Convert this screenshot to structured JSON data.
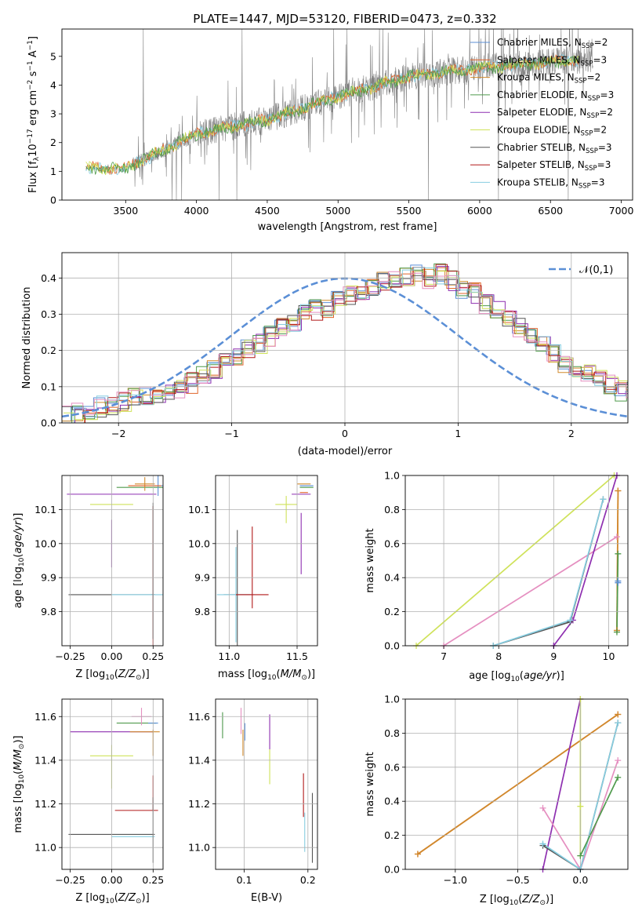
{
  "title": "PLATE=1447, MJD=53120, FIBERID=0473, z=0.332",
  "colors": {
    "Chabrier MILES": "#5b8fd6",
    "Salpeter MILES": "#e0652a",
    "Kroupa MILES": "#d08a2c",
    "Chabrier ELODIE": "#4f9a4c",
    "Salpeter ELODIE": "#8e2fb0",
    "Kroupa ELODIE": "#cfe25a",
    "Chabrier STELIB": "#555555",
    "Salpeter STELIB": "#b01818",
    "Kroupa STELIB": "#86cde0",
    "spectrum": "#808080",
    "normal": "#5b8fd6",
    "pink": "#e58fc0"
  },
  "chart_data": [
    {
      "id": "spectrum",
      "type": "line",
      "xlabel": "wavelength [Angstrom, rest frame]",
      "ylabel_parts": [
        "Flux [f",
        "λ",
        "10",
        "−17",
        " erg cm",
        "−2",
        " s",
        "−1",
        " A",
        "−1",
        "]"
      ],
      "xlim": [
        3050,
        7080
      ],
      "ylim": [
        0,
        5.95
      ],
      "xticks": [
        "3500",
        "4000",
        "4500",
        "5000",
        "5500",
        "6000",
        "6500",
        "7000"
      ],
      "yticks": [
        "0",
        "1",
        "2",
        "3",
        "4",
        "5"
      ],
      "data_trend": {
        "x": [
          3220,
          3500,
          4000,
          4500,
          5000,
          5500,
          6000,
          6500,
          6800
        ],
        "flux": [
          1.1,
          1.1,
          2.3,
          2.8,
          3.6,
          4.3,
          4.6,
          4.8,
          4.9
        ]
      },
      "legend_position": "upper right",
      "legend": [
        {
          "name": "Chabrier MILES",
          "nssp": "2"
        },
        {
          "name": "Salpeter MILES",
          "nssp": "3"
        },
        {
          "name": "Kroupa MILES",
          "nssp": "2"
        },
        {
          "name": "Chabrier ELODIE",
          "nssp": "3"
        },
        {
          "name": "Salpeter ELODIE",
          "nssp": "2"
        },
        {
          "name": "Kroupa ELODIE",
          "nssp": "2"
        },
        {
          "name": "Chabrier STELIB",
          "nssp": "3"
        },
        {
          "name": "Salpeter STELIB",
          "nssp": "3"
        },
        {
          "name": "Kroupa STELIB",
          "nssp": "3"
        }
      ],
      "legend_subscript": "SSP"
    },
    {
      "id": "residuals",
      "type": "bar",
      "subtype": "step-histogram",
      "xlabel": "(data-model)/error",
      "ylabel": "Normed distribution",
      "xlim": [
        -2.5,
        2.5
      ],
      "ylim": [
        0,
        0.47
      ],
      "xticks": [
        "−2",
        "−1",
        "0",
        "1",
        "2"
      ],
      "yticks": [
        "0.0",
        "0.1",
        "0.2",
        "0.3",
        "0.4"
      ],
      "bin_width": 0.1,
      "base_counts": [
        0.02,
        0.025,
        0.035,
        0.045,
        0.05,
        0.06,
        0.068,
        0.078,
        0.085,
        0.09,
        0.095,
        0.11,
        0.13,
        0.15,
        0.165,
        0.18,
        0.2,
        0.22,
        0.24,
        0.26,
        0.28,
        0.3,
        0.31,
        0.32,
        0.34,
        0.35,
        0.36,
        0.38,
        0.39,
        0.39,
        0.4,
        0.41,
        0.4,
        0.41,
        0.39,
        0.37,
        0.36,
        0.33,
        0.31,
        0.28,
        0.26,
        0.24,
        0.21,
        0.19,
        0.16,
        0.15,
        0.14,
        0.12,
        0.11,
        0.09,
        0.085,
        0.075,
        0.065,
        0.06,
        0.055,
        0.05,
        0.045,
        0.04,
        0.035,
        0.03
      ],
      "legend": "𝒩(0,1)",
      "legend_position": "upper right"
    },
    {
      "id": "age-vs-Z",
      "type": "scatter",
      "subtype": "errorbar",
      "xlabel": "Z [log10(Z/Z⊙)]",
      "ylabel": "age  [log10(age/yr)]",
      "xlim": [
        -0.3,
        0.31
      ],
      "ylim": [
        9.7,
        10.2
      ],
      "xticks": [
        "−0.25",
        "0.00",
        "0.25"
      ],
      "yticks": [
        "9.8",
        "9.9",
        "10.0",
        "10.1"
      ],
      "points": [
        {
          "model": "Salpeter ELODIE",
          "x": 0.0,
          "y": 10.145,
          "xerr": 0.27,
          "yerr": 0.0
        },
        {
          "model": "Kroupa ELODIE",
          "x": 0.0,
          "y": 10.115,
          "xerr": 0.13,
          "yerr": 0.0
        },
        {
          "model": "Chabrier ELODIE",
          "x": 0.25,
          "y": 10.165,
          "xerr": 0.22,
          "yerr": 0.0
        },
        {
          "model": "Kroupa MILES",
          "x": 0.2,
          "y": 10.175,
          "xerr": 0.06,
          "yerr": 0.02
        },
        {
          "model": "Chabrier MILES",
          "x": 0.28,
          "y": 10.17,
          "xerr": 0.03,
          "yerr": 0.03
        },
        {
          "model": "Salpeter STELIB",
          "x": 0.25,
          "y": 9.85,
          "xerr": 0.01,
          "yerr": 0.26
        },
        {
          "model": "Chabrier STELIB",
          "x": 0.0,
          "y": 9.85,
          "xerr": 0.26,
          "yerr": 0.0
        },
        {
          "model": "Kroupa STELIB",
          "x": 0.25,
          "y": 9.85,
          "xerr": 0.25,
          "yerr": 0.0
        },
        {
          "model": "Salpeter ELODIE",
          "x": 0.0,
          "y": 10.0,
          "xerr": 0.0,
          "yerr": 0.07
        },
        {
          "model": "Chabrier STELIB",
          "x": 0.25,
          "y": 9.92,
          "xerr": 0.0,
          "yerr": 0.2
        },
        {
          "model": "Salpeter MILES",
          "x": 0.2,
          "y": 10.17,
          "xerr": 0.1,
          "yerr": 0.0
        }
      ]
    },
    {
      "id": "age-vs-mass",
      "type": "scatter",
      "subtype": "errorbar",
      "xlabel": "mass [log10(M/M⊙)]",
      "ylabel": "",
      "xlim": [
        10.9,
        11.65
      ],
      "ylim": [
        9.7,
        10.2
      ],
      "xticks": [
        "11.0",
        "11.5"
      ],
      "yticks": [
        "9.8",
        "9.9",
        "10.0",
        "10.1"
      ],
      "points": [
        {
          "model": "Salpeter ELODIE",
          "x": 11.53,
          "y": 10.145,
          "xerr": 0.07,
          "yerr": 0.0
        },
        {
          "model": "Kroupa ELODIE",
          "x": 11.42,
          "y": 10.115,
          "xerr": 0.08,
          "yerr": 0.0
        },
        {
          "model": "Chabrier ELODIE",
          "x": 11.57,
          "y": 10.165,
          "xerr": 0.05,
          "yerr": 0.0
        },
        {
          "model": "Kroupa MILES",
          "x": 11.55,
          "y": 10.175,
          "xerr": 0.05,
          "yerr": 0.0
        },
        {
          "model": "Chabrier MILES",
          "x": 11.57,
          "y": 10.17,
          "xerr": 0.05,
          "yerr": 0.0
        },
        {
          "model": "Salpeter MILES",
          "x": 11.55,
          "y": 10.15,
          "xerr": 0.03,
          "yerr": 0.0
        },
        {
          "model": "Chabrier STELIB",
          "x": 11.06,
          "y": 9.85,
          "xerr": 0.1,
          "yerr": 0.19
        },
        {
          "model": "Kroupa STELIB",
          "x": 11.05,
          "y": 9.85,
          "xerr": 0.14,
          "yerr": 0.14
        },
        {
          "model": "Salpeter STELIB",
          "x": 11.17,
          "y": 9.85,
          "xerr": 0.12,
          "yerr": 0.0
        },
        {
          "model": "Salpeter STELIB",
          "x": 11.17,
          "y": 9.93,
          "xerr": 0.0,
          "yerr": 0.12
        },
        {
          "model": "Salpeter ELODIE",
          "x": 11.53,
          "y": 10.0,
          "xerr": 0.0,
          "yerr": 0.09
        },
        {
          "model": "Kroupa ELODIE",
          "x": 11.42,
          "y": 10.1,
          "xerr": 0.0,
          "yerr": 0.04
        }
      ]
    },
    {
      "id": "weight-vs-age",
      "type": "line",
      "xlabel": "age  [log10(age/yr)]",
      "ylabel": "mass weight",
      "xlim": [
        6.3,
        10.35
      ],
      "ylim": [
        0.0,
        1.0
      ],
      "xticks": [
        "7",
        "8",
        "9",
        "10"
      ],
      "yticks": [
        "0.0",
        "0.2",
        "0.4",
        "0.6",
        "0.8",
        "1.0"
      ],
      "series": [
        {
          "model": "Kroupa ELODIE",
          "x": [
            6.5,
            10.1
          ],
          "y": [
            0.0,
            1.0
          ]
        },
        {
          "model": "pink",
          "x": [
            7.0,
            10.15
          ],
          "y": [
            0.0,
            0.64
          ]
        },
        {
          "model": "Salpeter ELODIE",
          "x": [
            9.0,
            9.35,
            10.15
          ],
          "y": [
            0.0,
            0.15,
            1.0
          ]
        },
        {
          "model": "Chabrier STELIB",
          "x": [
            7.9,
            9.3,
            9.9
          ],
          "y": [
            0.0,
            0.14,
            0.86
          ]
        },
        {
          "model": "Kroupa STELIB",
          "x": [
            7.9,
            9.3,
            9.9
          ],
          "y": [
            0.0,
            0.15,
            0.86
          ]
        },
        {
          "model": "Salpeter MILES",
          "x": [
            10.15,
            10.17
          ],
          "y": [
            0.09,
            0.91
          ]
        },
        {
          "model": "Kroupa MILES",
          "x": [
            10.15,
            10.17
          ],
          "y": [
            0.09,
            0.91
          ]
        },
        {
          "model": "Chabrier ELODIE",
          "x": [
            10.15,
            10.17
          ],
          "y": [
            0.08,
            0.54
          ]
        },
        {
          "model": "Chabrier MILES",
          "x": [
            10.17,
            10.17
          ],
          "y": [
            0.38,
            0.37
          ]
        }
      ]
    },
    {
      "id": "mass-vs-Z",
      "type": "scatter",
      "subtype": "errorbar",
      "xlabel": "Z [log10(Z/Z⊙)]",
      "ylabel": "mass [log10(M/M⊙)]",
      "xlim": [
        -0.3,
        0.31
      ],
      "ylim": [
        10.9,
        11.68
      ],
      "xticks": [
        "−0.25",
        "0.00",
        "0.25"
      ],
      "yticks": [
        "11.0",
        "11.2",
        "11.4",
        "11.6"
      ],
      "points": [
        {
          "model": "Salpeter ELODIE",
          "x": 0.0,
          "y": 11.53,
          "xerr": 0.25,
          "yerr": 0.0
        },
        {
          "model": "Kroupa ELODIE",
          "x": 0.0,
          "y": 11.42,
          "xerr": 0.13,
          "yerr": 0.0
        },
        {
          "model": "Chabrier ELODIE",
          "x": 0.15,
          "y": 11.57,
          "xerr": 0.12,
          "yerr": 0.0
        },
        {
          "model": "Kroupa MILES",
          "x": 0.2,
          "y": 11.53,
          "xerr": 0.09,
          "yerr": 0.0
        },
        {
          "model": "Chabrier MILES",
          "x": 0.25,
          "y": 11.57,
          "xerr": 0.03,
          "yerr": 0.0
        },
        {
          "model": "pink",
          "x": 0.18,
          "y": 11.6,
          "xerr": 0.06,
          "yerr": 0.04
        },
        {
          "model": "Salpeter STELIB",
          "x": 0.15,
          "y": 11.17,
          "xerr": 0.13,
          "yerr": 0.0
        },
        {
          "model": "Chabrier STELIB",
          "x": 0.0,
          "y": 11.06,
          "xerr": 0.26,
          "yerr": 0.0
        },
        {
          "model": "Kroupa STELIB",
          "x": 0.13,
          "y": 11.05,
          "xerr": 0.13,
          "yerr": 0.0
        },
        {
          "model": "Salpeter STELIB",
          "x": 0.25,
          "y": 11.25,
          "xerr": 0.0,
          "yerr": 0.08
        },
        {
          "model": "Chabrier STELIB",
          "x": 0.25,
          "y": 11.08,
          "xerr": 0.0,
          "yerr": 0.15
        },
        {
          "model": "Kroupa MILES",
          "x": 0.25,
          "y": 11.48,
          "xerr": 0.0,
          "yerr": 0.06
        },
        {
          "model": "Kroupa ELODIE",
          "x": 0.0,
          "y": 11.37,
          "xerr": 0.0,
          "yerr": 0.1
        }
      ]
    },
    {
      "id": "mass-vs-ebv",
      "type": "scatter",
      "subtype": "errorbar",
      "xlabel": "E(B-V)",
      "ylabel": "",
      "xlim": [
        0.055,
        0.215
      ],
      "ylim": [
        10.9,
        11.68
      ],
      "xticks": [
        "0.1",
        "0.2"
      ],
      "yticks": [
        "11.0",
        "11.2",
        "11.4",
        "11.6"
      ],
      "points": [
        {
          "model": "Chabrier ELODIE",
          "x": 0.066,
          "y": 11.56,
          "yerr": 0.06
        },
        {
          "model": "pink",
          "x": 0.095,
          "y": 11.58,
          "yerr": 0.06
        },
        {
          "model": "Kroupa MILES",
          "x": 0.098,
          "y": 11.48,
          "yerr": 0.06
        },
        {
          "model": "Chabrier MILES",
          "x": 0.101,
          "y": 11.53,
          "yerr": 0.04
        },
        {
          "model": "Salpeter ELODIE",
          "x": 0.14,
          "y": 11.53,
          "yerr": 0.08
        },
        {
          "model": "Kroupa ELODIE",
          "x": 0.14,
          "y": 11.37,
          "yerr": 0.08
        },
        {
          "model": "Salpeter STELIB",
          "x": 0.193,
          "y": 11.24,
          "yerr": 0.1
        },
        {
          "model": "Kroupa STELIB",
          "x": 0.195,
          "y": 11.07,
          "yerr": 0.09
        },
        {
          "model": "Chabrier STELIB",
          "x": 0.207,
          "y": 11.09,
          "yerr": 0.16
        }
      ]
    },
    {
      "id": "weight-vs-Z",
      "type": "line",
      "xlabel": "Z [log10(Z/Z⊙)]",
      "ylabel": "mass weight",
      "xlim": [
        -1.4,
        0.38
      ],
      "ylim": [
        0.0,
        1.0
      ],
      "xticks": [
        "−1.0",
        "−0.5",
        "0.0"
      ],
      "yticks": [
        "0.0",
        "0.2",
        "0.4",
        "0.6",
        "0.8",
        "1.0"
      ],
      "series": [
        {
          "model": "Salpeter MILES",
          "x": [
            -1.3,
            0.3
          ],
          "y": [
            0.09,
            0.91
          ]
        },
        {
          "model": "Kroupa MILES",
          "x": [
            -1.3,
            0.3
          ],
          "y": [
            0.09,
            0.91
          ]
        },
        {
          "model": "Salpeter ELODIE",
          "x": [
            -0.3,
            0.0
          ],
          "y": [
            0.0,
            1.0
          ]
        },
        {
          "model": "Kroupa ELODIE",
          "x": [
            0.0,
            0.0,
            0.0
          ],
          "y": [
            1.0,
            0.37,
            0.08
          ]
        },
        {
          "model": "pink",
          "x": [
            -0.3,
            0.0,
            0.3
          ],
          "y": [
            0.36,
            0.0,
            0.64
          ]
        },
        {
          "model": "Chabrier STELIB",
          "x": [
            -0.3,
            0.0,
            0.3
          ],
          "y": [
            0.14,
            0.0,
            0.86
          ]
        },
        {
          "model": "Kroupa STELIB",
          "x": [
            -0.3,
            0.0,
            0.3
          ],
          "y": [
            0.15,
            0.0,
            0.86
          ]
        },
        {
          "model": "Chabrier ELODIE",
          "x": [
            0.0,
            0.3
          ],
          "y": [
            0.08,
            0.54
          ]
        }
      ]
    }
  ]
}
